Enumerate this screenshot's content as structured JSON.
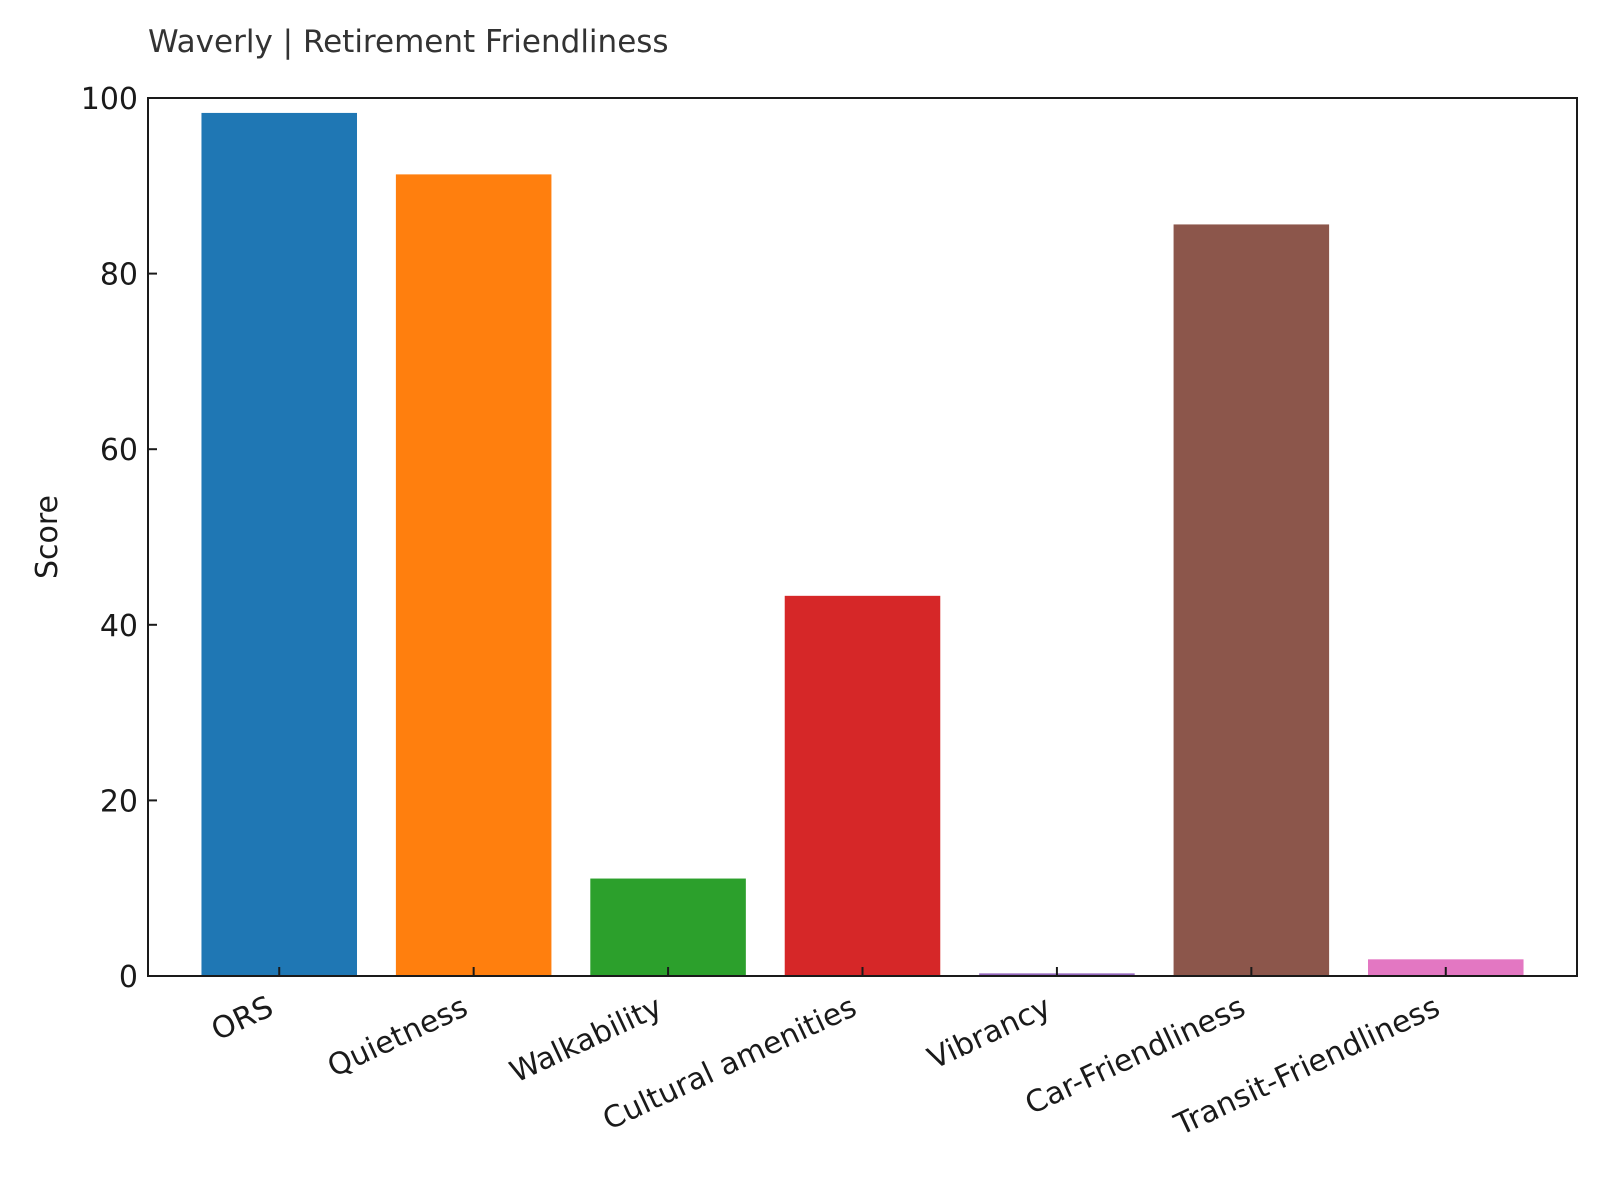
{
  "chart_data": {
    "type": "bar",
    "title": "Waverly | Retirement Friendliness",
    "xlabel": "",
    "ylabel": "Score",
    "ylim": [
      0,
      100
    ],
    "yticks": [
      0,
      20,
      40,
      60,
      80,
      100
    ],
    "grid": false,
    "categories": [
      "ORS",
      "Quietness",
      "Walkability",
      "Cultural amenities",
      "Vibrancy",
      "Car-Friendliness",
      "Transit-Friendliness"
    ],
    "values": [
      98.3,
      91.3,
      11.1,
      43.3,
      0.3,
      85.6,
      1.9
    ],
    "colors": [
      "#1f77b4",
      "#ff7f0e",
      "#2ca02c",
      "#d62728",
      "#9467bd",
      "#8c564b",
      "#e377c2"
    ]
  }
}
